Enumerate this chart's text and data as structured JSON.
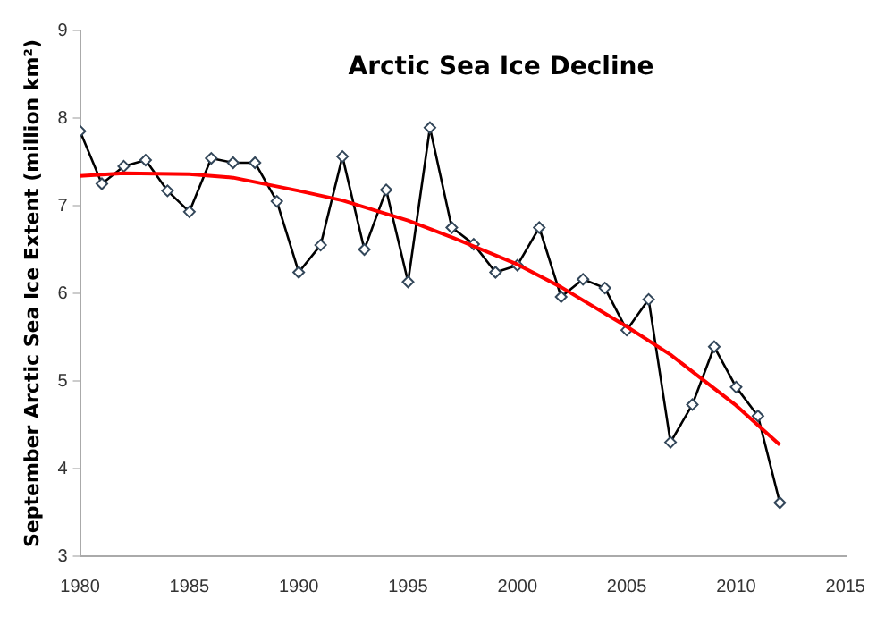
{
  "chart_data": {
    "type": "line",
    "title": "Arctic Sea Ice Decline",
    "ylabel": "September Arctic Sea Ice Extent (million km²)",
    "xlim": [
      1980,
      2015
    ],
    "xticks": [
      1980,
      1985,
      1990,
      1995,
      2000,
      2005,
      2010,
      2015
    ],
    "ylim": [
      3,
      9
    ],
    "yticks": [
      3,
      4,
      5,
      6,
      7,
      8,
      9
    ],
    "grid": false,
    "legend": false,
    "series": [
      {
        "color": "#ff0000",
        "marker": "none",
        "x": [
          1980,
          1982,
          1985,
          1987,
          1990,
          1992,
          1995,
          1997,
          2000,
          2002,
          2005,
          2007,
          2010,
          2012
        ],
        "values": [
          7.34,
          7.37,
          7.36,
          7.32,
          7.17,
          7.06,
          6.83,
          6.64,
          6.33,
          6.07,
          5.62,
          5.3,
          4.72,
          4.27
        ]
      },
      {
        "color": "#000000",
        "marker": "diamond",
        "x": [
          1980,
          1981,
          1982,
          1983,
          1984,
          1985,
          1986,
          1987,
          1988,
          1989,
          1990,
          1991,
          1992,
          1993,
          1994,
          1995,
          1996,
          1997,
          1998,
          1999,
          2000,
          2001,
          2002,
          2003,
          2004,
          2005,
          2006,
          2007,
          2008,
          2009,
          2010,
          2011,
          2012
        ],
        "values": [
          7.85,
          7.25,
          7.45,
          7.52,
          7.17,
          6.93,
          7.54,
          7.49,
          7.49,
          7.05,
          6.24,
          6.55,
          7.56,
          6.5,
          7.18,
          6.13,
          7.89,
          6.75,
          6.56,
          6.24,
          6.32,
          6.75,
          5.96,
          6.16,
          6.06,
          5.58,
          5.93,
          4.3,
          4.73,
          5.39,
          4.93,
          4.6,
          3.61
        ]
      }
    ]
  }
}
